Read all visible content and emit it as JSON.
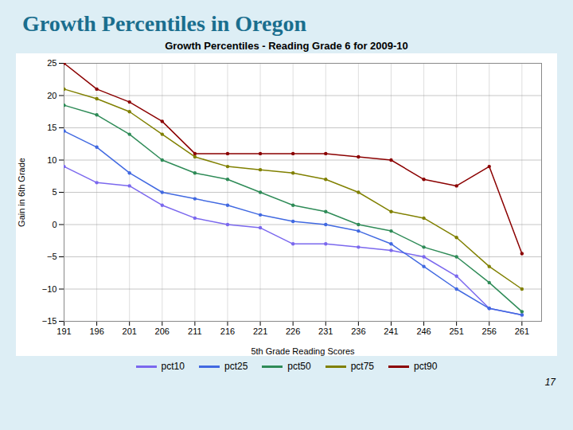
{
  "chart_data": {
    "type": "line",
    "title": "Growth Percentiles in Oregon",
    "subtitle": "Growth Percentiles - Reading Grade 6 for 2009-10",
    "xlabel": "5th Grade Reading Scores",
    "ylabel": "Gain in 6th Grade",
    "x": [
      191,
      196,
      201,
      206,
      211,
      216,
      221,
      226,
      231,
      236,
      241,
      246,
      251,
      256,
      261
    ],
    "series": [
      {
        "name": "pct10",
        "color": "#7b68ee",
        "values": [
          9,
          6.5,
          6,
          3,
          1,
          0,
          -0.5,
          -3,
          -3,
          -3.5,
          -4,
          -5,
          -8,
          -13,
          -14
        ]
      },
      {
        "name": "pct25",
        "color": "#4169e1",
        "values": [
          14.5,
          12,
          8,
          5,
          4,
          3,
          1.5,
          0.5,
          0,
          -1,
          -3,
          -6.5,
          -10,
          -13,
          -14
        ]
      },
      {
        "name": "pct50",
        "color": "#2e8b57",
        "values": [
          18.5,
          17,
          14,
          10,
          8,
          7,
          5,
          3,
          2,
          0,
          -1,
          -3.5,
          -5,
          -9,
          -13.5
        ]
      },
      {
        "name": "pct75",
        "color": "#808000",
        "values": [
          21,
          19.5,
          17.5,
          14,
          10.5,
          9,
          8.5,
          8,
          7,
          5,
          2,
          1,
          -2,
          -6.5,
          -10
        ]
      },
      {
        "name": "pct90",
        "color": "#8b0000",
        "values": [
          25,
          21,
          19,
          16,
          11,
          11,
          11,
          11,
          11,
          10.5,
          10,
          7,
          6,
          9,
          -4.5
        ]
      }
    ],
    "xlim": [
      191,
      264
    ],
    "ylim": [
      -15,
      25
    ],
    "xticks": [
      191,
      196,
      201,
      206,
      211,
      216,
      221,
      226,
      231,
      236,
      241,
      246,
      251,
      256,
      261
    ],
    "yticks": [
      -15,
      -10,
      -5,
      0,
      5,
      10,
      15,
      20,
      25
    ],
    "grid": true,
    "legend": "bottom",
    "marker": "circle",
    "annotations": [
      "17"
    ]
  }
}
